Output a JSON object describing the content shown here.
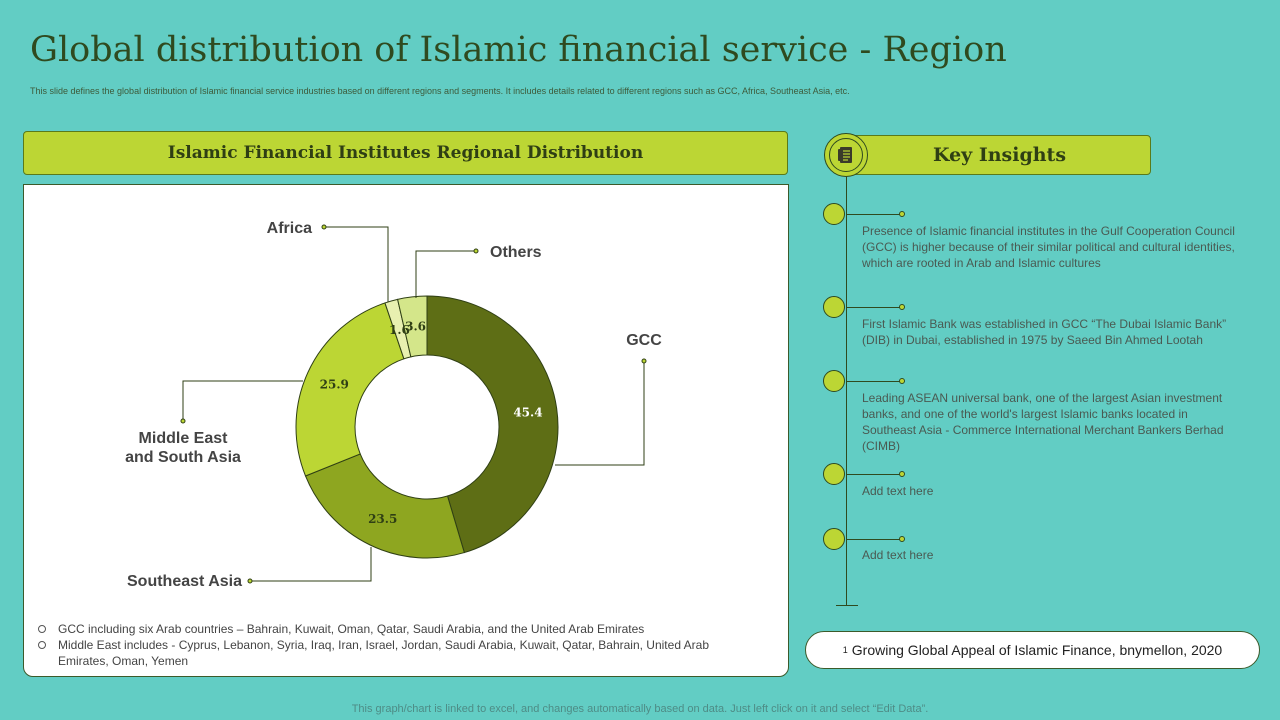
{
  "title": "Global distribution of Islamic financial service - Region",
  "subtitle": "This slide defines the global distribution of Islamic  financial service industries based on different regions and segments. It includes details related to different regions such as GCC,  Africa, Southeast Asia, etc.",
  "chart_panel": {
    "header": "Islamic Financial Institutes Regional Distribution"
  },
  "chart_data": {
    "type": "pie",
    "donut": true,
    "categories": [
      "GCC",
      "Southeast Asia",
      "Middle East and South Asia",
      "Africa",
      "Others"
    ],
    "values": [
      45.4,
      23.5,
      25.9,
      1.6,
      3.6
    ],
    "value_labels": [
      "45.4",
      "23.5",
      "25.9",
      "1.6",
      "3.6"
    ],
    "legend_labels": [
      "GCC",
      "Southeast Asia",
      "Middle East\nand South Asia",
      "Africa",
      "Others"
    ],
    "colors": [
      "#5e6e15",
      "#8ea620",
      "#bcd634",
      "#e8f0b0",
      "#d4e68a"
    ]
  },
  "notes": [
    "GCC including six Arab countries – Bahrain,  Kuwait,  Oman,  Qatar,  Saudi Arabia,  and the United Arab Emirates",
    "Middle East includes - Cyprus,  Lebanon,  Syria, Iraq,  Iran,  Israel,  Jordan,  Saudi Arabia,  Kuwait,  Qatar,  Bahrain,  United Arab Emirates,  Oman,  Yemen"
  ],
  "key_insights": {
    "header": "Key Insights",
    "icon": "document-list-icon",
    "items": [
      "Presence of Islamic financial institutes in the Gulf Cooperation Council (GCC) is higher because of their similar political and cultural identities, which are rooted in Arab and Islamic cultures",
      "First Islamic Bank was established in GCC “The Dubai Islamic Bank” (DIB) in Dubai, established in 1975 by Saeed Bin Ahmed Lootah",
      "Leading ASEAN universal  bank,  one of the largest Asian investment  banks,  and one of the world's largest Islamic banks located in Southeast Asia -  Commerce International Merchant Bankers Berhad (CIMB)",
      "Add text here",
      "Add text here"
    ]
  },
  "source": {
    "sup": "1",
    "text": "Growing Global Appeal of Islamic Finance, bnymellon, 2020"
  },
  "footer": "This graph/chart is linked to excel,  and changes automatically based on data. Just left click on it and select “Edit Data”."
}
